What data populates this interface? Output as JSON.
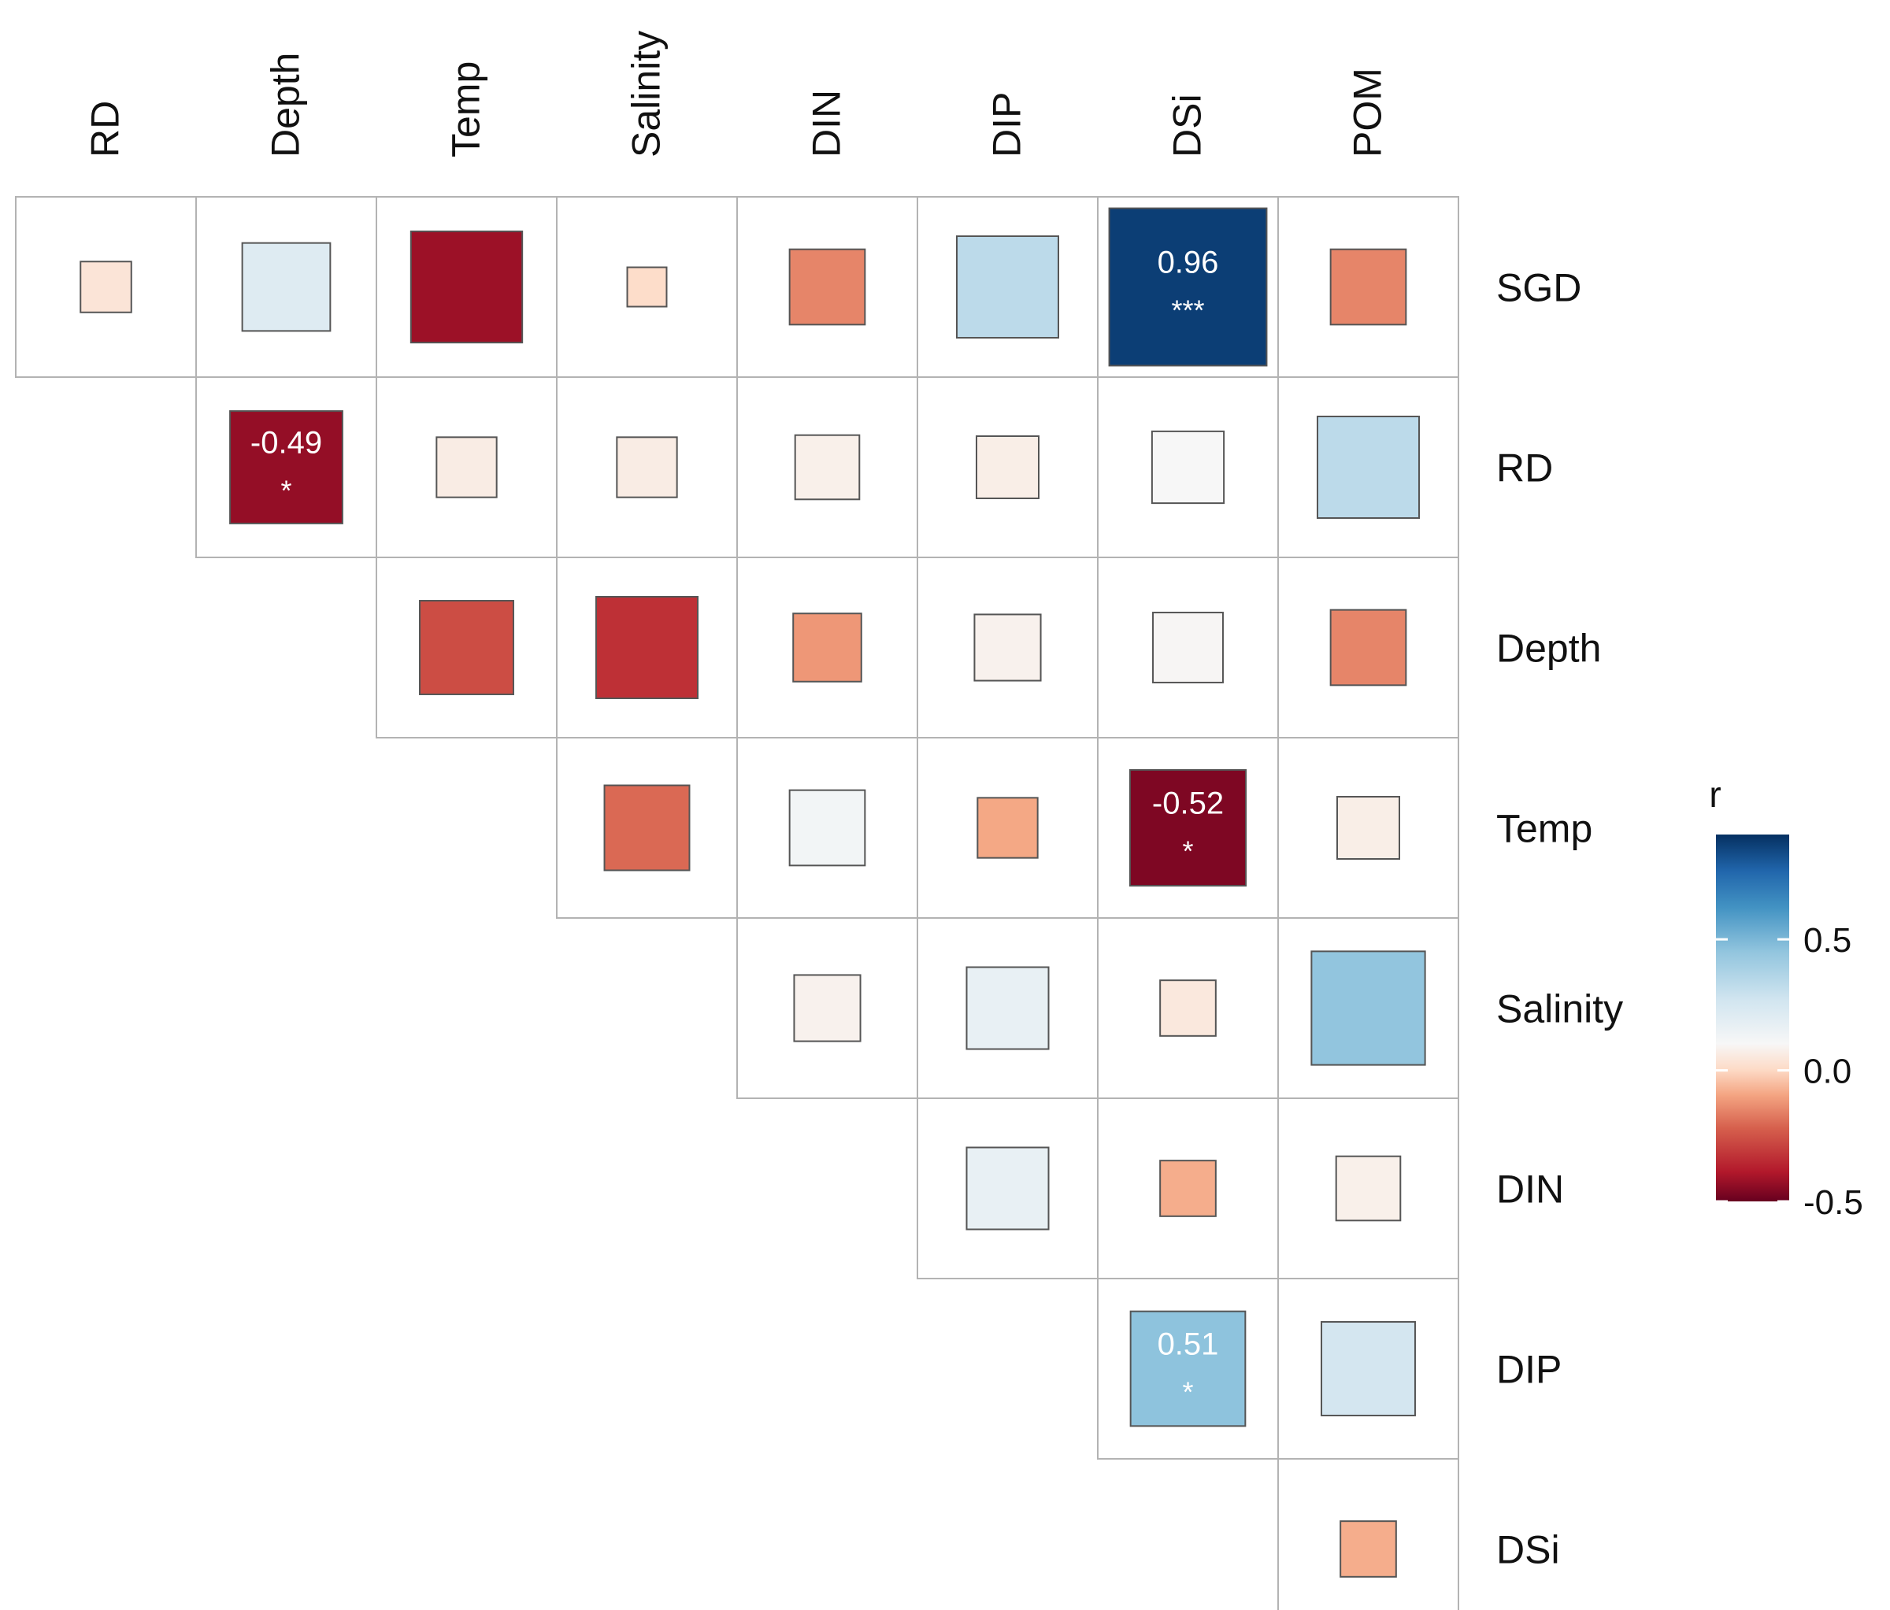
{
  "chart_data": {
    "type": "heatmap",
    "title": "",
    "columns": [
      "RD",
      "Depth",
      "Temp",
      "Salinity",
      "DIN",
      "DIP",
      "DSi",
      "POM"
    ],
    "rows": [
      "SGD",
      "RD",
      "Depth",
      "Temp",
      "Salinity",
      "DIN",
      "DIP",
      "DSi"
    ],
    "layout": "upper-triangle",
    "cells": [
      {
        "row": "SGD",
        "col": "RD",
        "r": 0.1
      },
      {
        "row": "SGD",
        "col": "Depth",
        "r": 0.3
      },
      {
        "row": "SGD",
        "col": "Temp",
        "r": -0.48
      },
      {
        "row": "SGD",
        "col": "Salinity",
        "r": 0.06
      },
      {
        "row": "SGD",
        "col": "DIN",
        "r": -0.22
      },
      {
        "row": "SGD",
        "col": "DIP",
        "r": 0.4
      },
      {
        "row": "SGD",
        "col": "DSi",
        "r": 0.96,
        "label": "0.96",
        "sig": "***"
      },
      {
        "row": "SGD",
        "col": "POM",
        "r": -0.22
      },
      {
        "row": "RD",
        "col": "Depth",
        "r": -0.49,
        "label": "-0.49",
        "sig": "*"
      },
      {
        "row": "RD",
        "col": "Temp",
        "r": 0.14
      },
      {
        "row": "RD",
        "col": "Salinity",
        "r": 0.14
      },
      {
        "row": "RD",
        "col": "DIN",
        "r": 0.16
      },
      {
        "row": "RD",
        "col": "DIP",
        "r": 0.15
      },
      {
        "row": "RD",
        "col": "DSi",
        "r": 0.2
      },
      {
        "row": "RD",
        "col": "POM",
        "r": 0.4
      },
      {
        "row": "Depth",
        "col": "Temp",
        "r": -0.34
      },
      {
        "row": "Depth",
        "col": "Salinity",
        "r": -0.4
      },
      {
        "row": "Depth",
        "col": "DIN",
        "r": -0.18
      },
      {
        "row": "Depth",
        "col": "DIP",
        "r": 0.17
      },
      {
        "row": "Depth",
        "col": "DSi",
        "r": 0.19
      },
      {
        "row": "Depth",
        "col": "POM",
        "r": -0.22
      },
      {
        "row": "Temp",
        "col": "Salinity",
        "r": -0.28
      },
      {
        "row": "Temp",
        "col": "DIN",
        "r": 0.22
      },
      {
        "row": "Temp",
        "col": "DIP",
        "r": -0.14
      },
      {
        "row": "Temp",
        "col": "DSi",
        "r": -0.52,
        "label": "-0.52",
        "sig": "*"
      },
      {
        "row": "Temp",
        "col": "POM",
        "r": 0.15
      },
      {
        "row": "Salinity",
        "col": "DIN",
        "r": 0.17
      },
      {
        "row": "Salinity",
        "col": "DIP",
        "r": 0.26
      },
      {
        "row": "Salinity",
        "col": "DSi",
        "r": 0.12
      },
      {
        "row": "Salinity",
        "col": "POM",
        "r": 0.5
      },
      {
        "row": "DIN",
        "col": "DIP",
        "r": 0.26
      },
      {
        "row": "DIN",
        "col": "DSi",
        "r": -0.12
      },
      {
        "row": "DIN",
        "col": "POM",
        "r": 0.16
      },
      {
        "row": "DIP",
        "col": "DSi",
        "r": 0.51,
        "label": "0.51",
        "sig": "*"
      },
      {
        "row": "DIP",
        "col": "POM",
        "r": 0.34
      },
      {
        "row": "DSi",
        "col": "POM",
        "r": -0.12
      }
    ],
    "legend": {
      "title": "r",
      "placement": "right",
      "range": [
        -0.5,
        0.9
      ],
      "ticks": [
        "0.5",
        "0.0",
        "-0.5"
      ],
      "tick_values": [
        0.5,
        0.0,
        -0.5
      ]
    }
  }
}
